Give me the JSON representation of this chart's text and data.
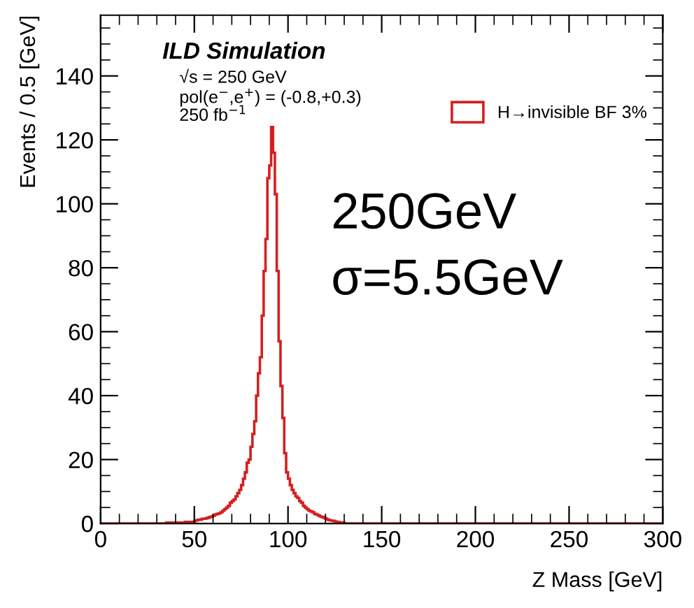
{
  "chart_data": {
    "type": "histogram",
    "xlabel": "Z Mass [GeV]",
    "ylabel": "Events / 0.5 [GeV]",
    "bins": [
      0,
      35,
      40,
      45,
      50,
      51,
      52,
      53,
      54,
      55,
      56,
      57,
      58,
      59,
      60,
      61,
      62,
      63,
      64,
      65,
      66,
      67,
      68,
      69,
      70,
      71,
      72,
      73,
      74,
      75,
      76,
      77,
      78,
      79,
      80,
      81,
      82,
      83,
      84,
      85,
      86,
      87,
      88,
      89,
      90,
      91,
      92,
      93,
      94,
      95,
      96,
      97,
      98,
      99,
      100,
      101,
      102,
      103,
      104,
      105,
      106,
      107,
      108,
      109,
      110,
      111,
      112,
      113,
      114,
      115,
      116,
      117,
      118,
      119,
      120,
      121,
      122,
      123,
      124,
      125,
      126,
      127,
      128,
      129,
      130,
      300
    ],
    "series": [
      {
        "name": "H→invisible BF 3%",
        "color": "#d42020",
        "values": [
          0,
          0.3,
          0.3,
          0.5,
          0.8,
          1,
          1.2,
          1.2,
          1.5,
          1.5,
          1.6,
          1.8,
          2,
          2.2,
          2.5,
          2.8,
          3,
          3.2,
          3.5,
          4,
          4.5,
          5,
          5.5,
          6.5,
          7,
          7.5,
          8.5,
          9.5,
          10.5,
          12,
          14,
          16,
          19,
          20,
          24,
          28,
          32,
          40,
          47,
          52,
          65,
          79,
          89,
          108,
          112,
          124,
          116,
          103,
          79,
          57,
          43,
          33,
          22,
          16,
          14,
          12,
          10.5,
          9.5,
          8.5,
          8,
          7,
          6.5,
          5.5,
          5,
          4.5,
          4,
          3.8,
          3.5,
          3,
          2.8,
          2.5,
          2.2,
          2,
          1.8,
          1.5,
          1.2,
          1,
          0.9,
          0.8,
          0.6,
          0.5,
          0.4,
          0.3,
          0.3,
          0
        ]
      }
    ],
    "xlim": [
      0,
      300
    ],
    "xticks": [
      0,
      50,
      100,
      150,
      200,
      250,
      300
    ],
    "ylim": [
      0,
      159
    ],
    "yticks": [
      0,
      20,
      40,
      60,
      80,
      100,
      120,
      140
    ],
    "legend": "top right",
    "grid": false,
    "annotations": [
      "ILD Simulation",
      "√s = 250 GeV",
      "pol(e$^{−}$,e$^{+}$) = (-0.8,+0.3)",
      "250 fb$^{−1}$",
      "250GeV",
      "σ=5.5GeV"
    ]
  }
}
